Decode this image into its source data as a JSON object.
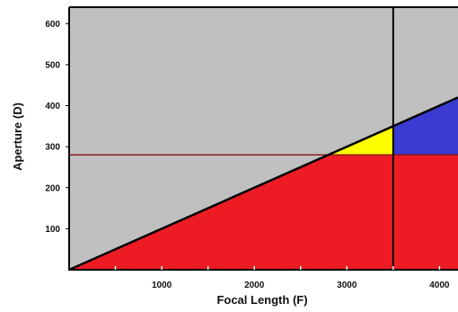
{
  "chart_data": {
    "type": "area",
    "title": "",
    "xlabel": "Focal Length (F)",
    "ylabel": "Aperture (D)",
    "xlim": [
      0,
      4200
    ],
    "ylim": [
      0,
      640
    ],
    "grid": false,
    "x_ticks": [
      1000,
      2000,
      3000,
      4000
    ],
    "x_minor_ticks": [
      500,
      1000,
      1500,
      2000,
      2500,
      3000,
      3500,
      4000
    ],
    "y_ticks": [
      100,
      200,
      300,
      400,
      500,
      600
    ],
    "line": {
      "x": [
        0,
        4200
      ],
      "y": [
        0,
        420
      ],
      "color": "#000000"
    },
    "vertical_line": {
      "x": 3500,
      "color": "#000000"
    },
    "horizontal_line": {
      "y": 280,
      "color": "#8b1a1a"
    },
    "regions": [
      {
        "color": "#c0c0c0",
        "polygon": [
          [
            0,
            0
          ],
          [
            0,
            640
          ],
          [
            4200,
            640
          ],
          [
            4200,
            420
          ]
        ]
      },
      {
        "color": "#ed1c24",
        "polygon": [
          [
            0,
            0
          ],
          [
            2800,
            280
          ],
          [
            4200,
            280
          ],
          [
            4200,
            0
          ]
        ]
      },
      {
        "color": "#ed1c24",
        "polygon": [
          [
            0,
            0
          ],
          [
            4200,
            0
          ],
          [
            4200,
            280
          ],
          [
            2800,
            280
          ]
        ]
      },
      {
        "color": "#ffff00",
        "polygon": [
          [
            2800,
            280
          ],
          [
            3500,
            350
          ],
          [
            3500,
            280
          ]
        ]
      },
      {
        "color": "#3b3bd1",
        "polygon": [
          [
            3500,
            280
          ],
          [
            3500,
            350
          ],
          [
            4200,
            420
          ],
          [
            4200,
            280
          ]
        ]
      }
    ]
  }
}
